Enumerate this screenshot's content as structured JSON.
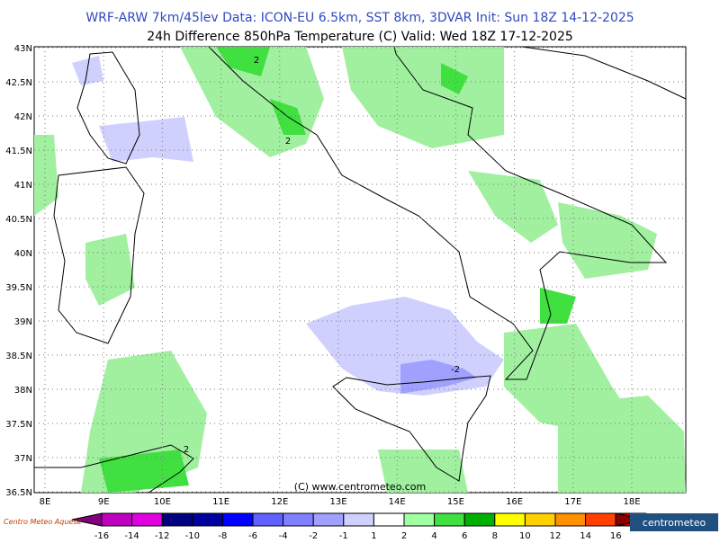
{
  "header": {
    "title": "WRF-ARW 7km/45lev   Data: ICON-EU 6.5km, SST 8km, 3DVAR   Init: Sun 18Z 14-12-2025",
    "subtitle": "24h Difference 850hPa Temperature (C)  Valid: Wed 18Z 17-12-2025"
  },
  "map": {
    "lat_labels": [
      {
        "value": 43,
        "label": "43N"
      },
      {
        "value": 42.5,
        "label": "42.5N"
      },
      {
        "value": 42,
        "label": "42N"
      },
      {
        "value": 41.5,
        "label": "41.5N"
      },
      {
        "value": 41,
        "label": "41N"
      },
      {
        "value": 40.5,
        "label": "40.5N"
      },
      {
        "value": 40,
        "label": "40N"
      },
      {
        "value": 39.5,
        "label": "39.5N"
      },
      {
        "value": 39,
        "label": "39N"
      },
      {
        "value": 38.5,
        "label": "38.5N"
      },
      {
        "value": 38,
        "label": "38N"
      },
      {
        "value": 37.5,
        "label": "37.5N"
      },
      {
        "value": 37,
        "label": "37N"
      },
      {
        "value": 36.5,
        "label": "36.5N"
      }
    ],
    "lon_labels": [
      {
        "value": 8,
        "label": "8E"
      },
      {
        "value": 9,
        "label": "9E"
      },
      {
        "value": 10,
        "label": "10E"
      },
      {
        "value": 11,
        "label": "11E"
      },
      {
        "value": 12,
        "label": "12E"
      },
      {
        "value": 13,
        "label": "13E"
      },
      {
        "value": 14,
        "label": "14E"
      },
      {
        "value": 15,
        "label": "15E"
      },
      {
        "value": 16,
        "label": "16E"
      },
      {
        "value": 17,
        "label": "17E"
      },
      {
        "value": 18,
        "label": "18E"
      }
    ],
    "copyright": "(C) www.centrometeo.com",
    "contour_labels": [
      "2",
      "2",
      "2",
      "-2"
    ]
  },
  "colorbar": {
    "levels": [
      -16,
      -14,
      -12,
      -10,
      -8,
      -6,
      -4,
      -2,
      -1,
      1,
      2,
      4,
      6,
      8,
      10,
      12,
      14,
      16
    ],
    "colors": [
      "#800080",
      "#c000c0",
      "#e000e0",
      "#000080",
      "#0000a0",
      "#0000ff",
      "#6060ff",
      "#8080ff",
      "#a0a0ff",
      "#d0d0ff",
      "#ffffff",
      "#a0ffa0",
      "#40e040",
      "#00b000",
      "#ffff00",
      "#ffd000",
      "#ff9000",
      "#ff4000",
      "#d00000",
      "#8b0000"
    ]
  },
  "logos": {
    "left": "Centro Meteo Aquese",
    "right": "centrometeo"
  }
}
